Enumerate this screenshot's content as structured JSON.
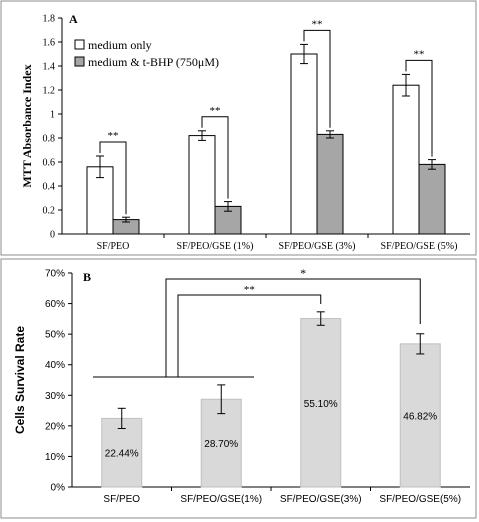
{
  "chart_data": [
    {
      "type": "bar",
      "panel_label": "A",
      "ylabel": "MTT Absorbance Index",
      "xlabel": "",
      "ylim": [
        0,
        1.8
      ],
      "yticks": [
        "0",
        "0.2",
        "0.4",
        "0.6",
        "0.8",
        "1",
        "1.2",
        "1.4",
        "1.6",
        "1.8"
      ],
      "categories": [
        "SF/PEO",
        "SF/PEO/GSE (1%)",
        "SF/PEO/GSE (3%)",
        "SF/PEO/GSE (5%)"
      ],
      "series": [
        {
          "name": "medium only",
          "color": "#ffffff",
          "values": [
            0.56,
            0.82,
            1.5,
            1.24
          ],
          "errors": [
            0.09,
            0.04,
            0.08,
            0.09
          ]
        },
        {
          "name": "medium & t-BHP (750μM)",
          "color": "#a6a6a6",
          "values": [
            0.12,
            0.23,
            0.83,
            0.58
          ],
          "errors": [
            0.02,
            0.04,
            0.03,
            0.04
          ]
        }
      ],
      "significance": [
        {
          "category": 0,
          "label": "**"
        },
        {
          "category": 1,
          "label": "**"
        },
        {
          "category": 2,
          "label": "**"
        },
        {
          "category": 3,
          "label": "**"
        }
      ],
      "grid": false,
      "legend_position": "top-left"
    },
    {
      "type": "bar",
      "panel_label": "B",
      "ylabel": "Cells Survival Rate",
      "xlabel": "",
      "ylim": [
        0,
        70
      ],
      "yticks": [
        "0%",
        "10%",
        "20%",
        "30%",
        "40%",
        "50%",
        "60%",
        "70%"
      ],
      "categories": [
        "SF/PEO",
        "SF/PEO/GSE(1%)",
        "SF/PEO/GSE(3%)",
        "SF/PEO/GSE(5%)"
      ],
      "values": [
        22.44,
        28.7,
        55.1,
        46.82
      ],
      "errors": [
        3.3,
        4.7,
        2.2,
        3.3
      ],
      "data_labels": [
        "22.44%",
        "28.70%",
        "55.10%",
        "46.82%"
      ],
      "color": "#d9d9d9",
      "significance": [
        {
          "from": "SF/PEO + SF/PEO/GSE(1%)",
          "to": "SF/PEO/GSE(3%)",
          "label": "**"
        },
        {
          "from": "SF/PEO + SF/PEO/GSE(1%)",
          "to": "SF/PEO/GSE(5%)",
          "label": "*"
        }
      ],
      "grid": false
    }
  ]
}
